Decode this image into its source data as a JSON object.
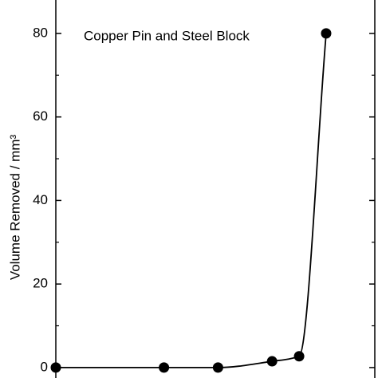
{
  "chart_data": {
    "type": "line",
    "annotation": "Copper Pin and Steel Block",
    "y_label": "Volume Removed / mm³",
    "x": [
      0,
      4,
      6,
      8,
      9,
      10
    ],
    "series": [
      {
        "color": "#000000",
        "values": [
          0,
          0,
          0,
          1.5,
          2.7,
          80
        ]
      }
    ],
    "xlim": [
      0,
      11.8
    ],
    "ylim": [
      -2.5,
      88
    ],
    "yticks": [
      0,
      20,
      40,
      60,
      80
    ],
    "minor_yticks": [
      10,
      30,
      50,
      70
    ]
  }
}
